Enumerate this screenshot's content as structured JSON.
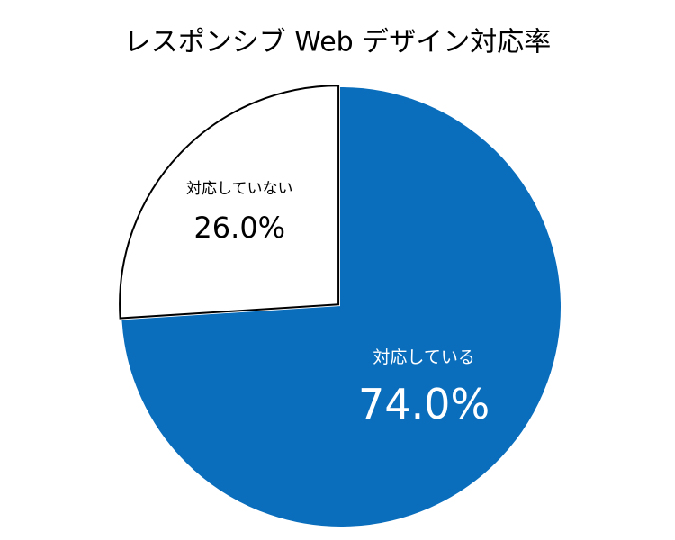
{
  "chart_data": {
    "type": "pie",
    "title": "レスポンシブ Web デザイン対応率",
    "categories": [
      "対応している",
      "対応していない"
    ],
    "values": [
      74.0,
      26.0
    ],
    "value_labels": [
      "74.0%",
      "26.0%"
    ],
    "colors": [
      "#0a6ebd",
      "#ffffff"
    ],
    "outline_colors": [
      "#0a6ebd",
      "#000000"
    ],
    "label_colors": [
      "#ffffff",
      "#000000"
    ]
  }
}
